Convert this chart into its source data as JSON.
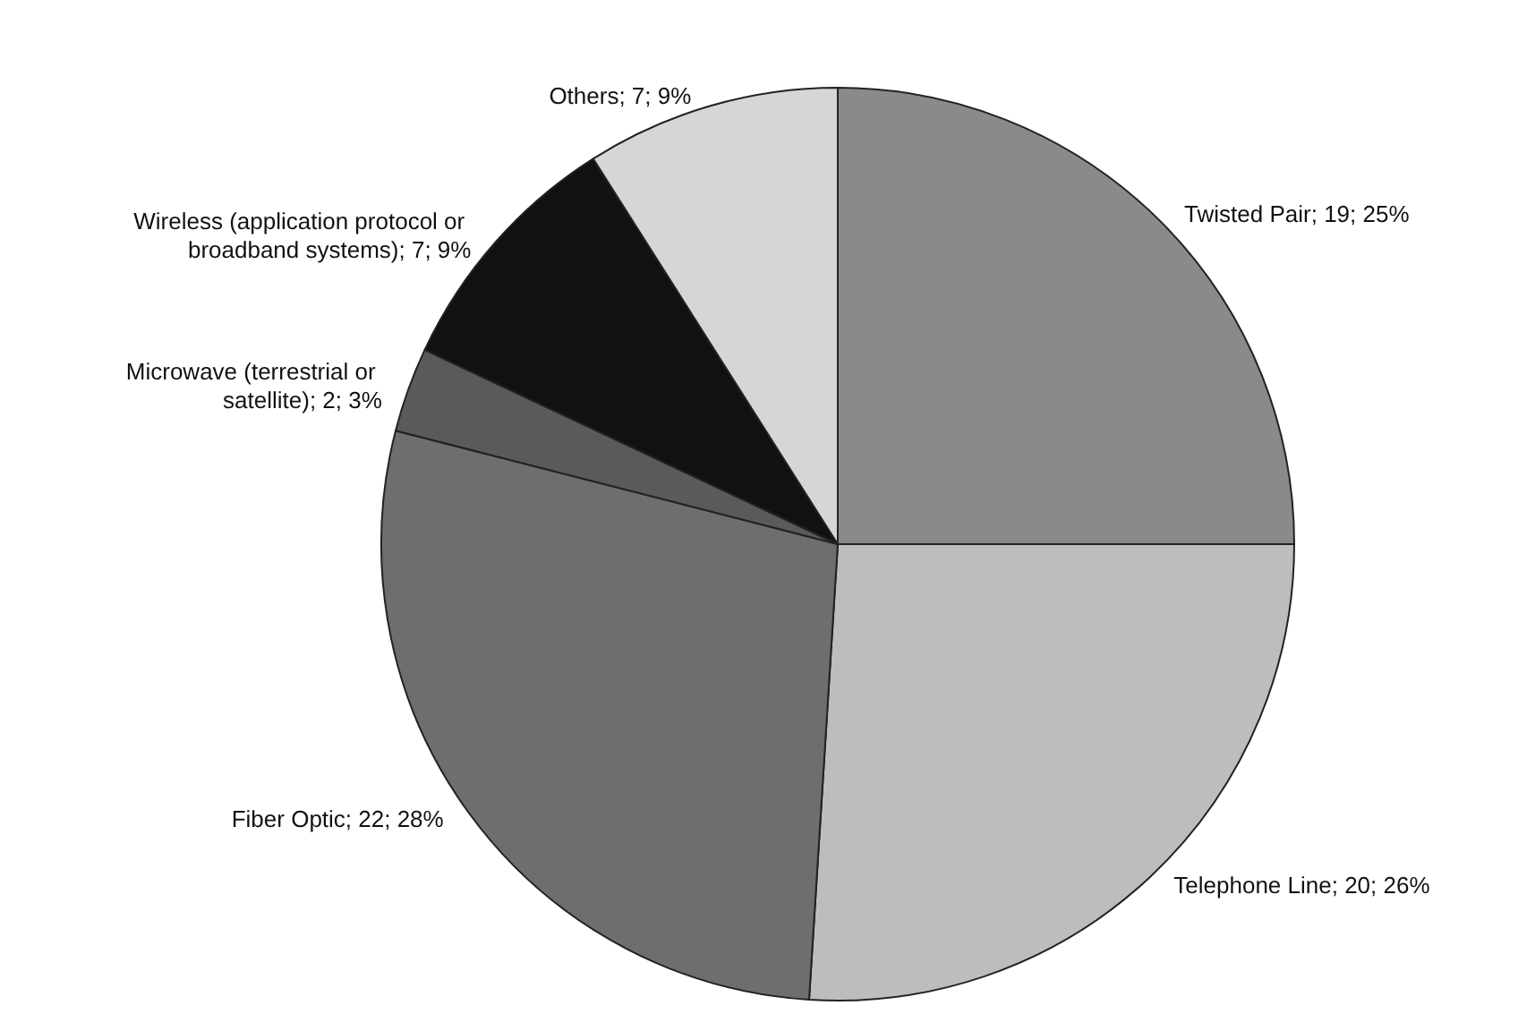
{
  "chart_data": {
    "type": "pie",
    "categories": [
      "Twisted Pair",
      "Telephone Line",
      "Fiber Optic",
      "Microwave (terrestrial or satellite)",
      "Wireless (application protocol or broadband systems)",
      "Others"
    ],
    "values": [
      25,
      26,
      28,
      3,
      9,
      9
    ],
    "value_labels": [
      "; 19; 25%",
      "; 20; 26%",
      "; 22; 28%",
      "; 2; 3%",
      "; 7; 9%",
      "; 7; 9%"
    ],
    "colors": [
      "#8a8a8a",
      "#bdbdbd",
      "#6e6e6e",
      "#5a5a5a",
      "#111111",
      "#d6d6d6"
    ],
    "legend": false
  }
}
